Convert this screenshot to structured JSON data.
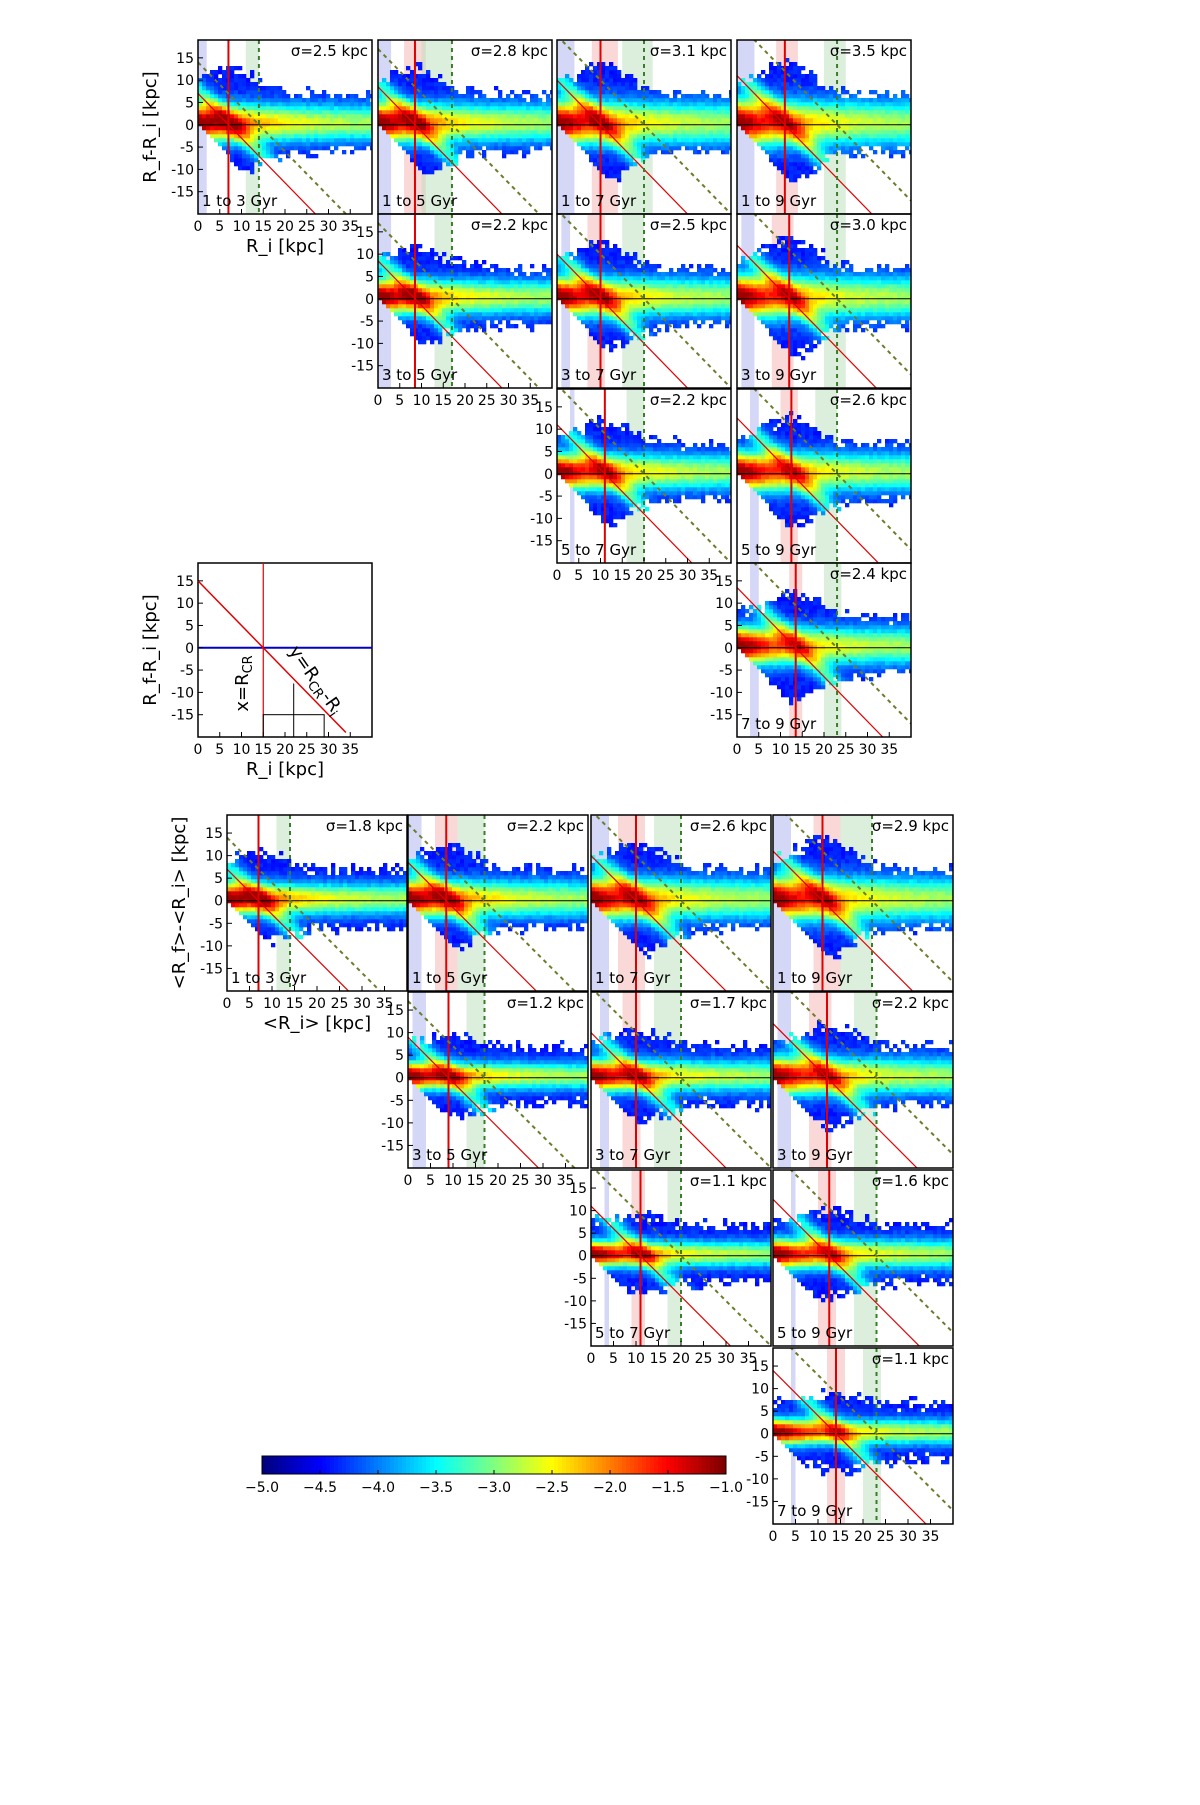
{
  "chart_data": [
    {
      "type": "heatmap",
      "group": "top",
      "xlabel": "R_i [kpc]",
      "ylabel": "R_f-R_i [kpc]",
      "xlim": [
        0,
        40
      ],
      "ylim": [
        -20,
        19
      ],
      "xticks": [
        0,
        5,
        10,
        15,
        20,
        25,
        30,
        35
      ],
      "yticks": [
        15,
        10,
        5,
        0,
        -5,
        -10,
        -15
      ],
      "panels": [
        {
          "row": 0,
          "col": 0,
          "label": "1 to 3 Gyr",
          "sigma": "σ=2.5 kpc",
          "r_cr": 7,
          "blue_band": [
            0,
            2
          ],
          "red_band": null,
          "green_band": [
            11,
            14
          ],
          "green_dashed": 14,
          "spread": 0.8
        },
        {
          "row": 0,
          "col": 1,
          "label": "1 to 5 Gyr",
          "sigma": "σ=2.8 kpc",
          "r_cr": 8.5,
          "blue_band": [
            0,
            3
          ],
          "red_band": [
            6,
            11
          ],
          "green_band": [
            10,
            17
          ],
          "green_dashed": 17,
          "spread": 0.85
        },
        {
          "row": 0,
          "col": 2,
          "label": "1 to 7 Gyr",
          "sigma": "σ=3.1 kpc",
          "r_cr": 10,
          "blue_band": [
            0,
            4
          ],
          "red_band": [
            8,
            14
          ],
          "green_band": [
            15,
            22
          ],
          "green_dashed": 20,
          "spread": 1.0
        },
        {
          "row": 0,
          "col": 3,
          "label": "1 to 9 Gyr",
          "sigma": "σ=3.5 kpc",
          "r_cr": 11,
          "blue_band": [
            0,
            4
          ],
          "red_band": [
            9,
            14
          ],
          "green_band": [
            20,
            25
          ],
          "green_dashed": 23,
          "spread": 1.1
        },
        {
          "row": 1,
          "col": 1,
          "label": "3 to 5 Gyr",
          "sigma": "σ=2.2 kpc",
          "r_cr": 8.5,
          "blue_band": [
            0,
            3
          ],
          "red_band": null,
          "green_band": [
            13,
            17
          ],
          "green_dashed": 17,
          "spread": 0.7
        },
        {
          "row": 1,
          "col": 2,
          "label": "3 to 7 Gyr",
          "sigma": "σ=2.5 kpc",
          "r_cr": 10,
          "blue_band": [
            1,
            3
          ],
          "red_band": [
            7,
            11
          ],
          "green_band": [
            15,
            20
          ],
          "green_dashed": 20,
          "spread": 0.85
        },
        {
          "row": 1,
          "col": 3,
          "label": "3 to 9 Gyr",
          "sigma": "σ=3.0 kpc",
          "r_cr": 12,
          "blue_band": [
            1,
            4
          ],
          "red_band": [
            8,
            13
          ],
          "green_band": [
            20,
            25
          ],
          "green_dashed": 23,
          "spread": 1.0
        },
        {
          "row": 2,
          "col": 2,
          "label": "5 to 7 Gyr",
          "sigma": "σ=2.2 kpc",
          "r_cr": 11,
          "blue_band": [
            3,
            4
          ],
          "red_band": null,
          "green_band": [
            16,
            20
          ],
          "green_dashed": 20,
          "spread": 0.75
        },
        {
          "row": 2,
          "col": 3,
          "label": "5 to 9 Gyr",
          "sigma": "σ=2.6 kpc",
          "r_cr": 12.5,
          "blue_band": [
            3,
            5
          ],
          "red_band": [
            10,
            14
          ],
          "green_band": [
            18,
            23
          ],
          "green_dashed": 23,
          "spread": 0.85
        },
        {
          "row": 3,
          "col": 3,
          "label": "7 to 9 Gyr",
          "sigma": "σ=2.4 kpc",
          "r_cr": 13.5,
          "blue_band": [
            3,
            5
          ],
          "red_band": [
            12,
            15
          ],
          "green_band": [
            20,
            24
          ],
          "green_dashed": 23,
          "spread": 0.8
        }
      ]
    },
    {
      "type": "diagram",
      "group": "key",
      "xlabel": "R_i [kpc]",
      "ylabel": "R_f-R_i [kpc]",
      "xlim": [
        0,
        40
      ],
      "ylim": [
        -20,
        19
      ],
      "xticks": [
        0,
        5,
        10,
        15,
        20,
        25,
        30,
        35
      ],
      "yticks": [
        15,
        10,
        5,
        0,
        -5,
        -10,
        -15
      ],
      "r_cr": 15,
      "vline_label": "x=R",
      "vline_sub": "CR",
      "diag_label_pre": "y=R",
      "diag_sub": "CR",
      "diag_label_post": "-R",
      "diag_sub2": "i"
    },
    {
      "type": "heatmap",
      "group": "bottom",
      "xlabel": "<R_i> [kpc]",
      "ylabel": "<R_f>-<R_i> [kpc]",
      "xlim": [
        0,
        40
      ],
      "ylim": [
        -20,
        19
      ],
      "xticks": [
        0,
        5,
        10,
        15,
        20,
        25,
        30,
        35
      ],
      "yticks": [
        15,
        10,
        5,
        0,
        -5,
        -10,
        -15
      ],
      "panels": [
        {
          "row": 0,
          "col": 0,
          "label": "1 to 3 Gyr",
          "sigma": "σ=1.8 kpc",
          "r_cr": 7,
          "blue_band": null,
          "red_band": null,
          "green_band": [
            11,
            14
          ],
          "green_dashed": 14,
          "spread": 0.55
        },
        {
          "row": 0,
          "col": 1,
          "label": "1 to 5 Gyr",
          "sigma": "σ=2.2 kpc",
          "r_cr": 8.5,
          "blue_band": [
            0,
            3
          ],
          "red_band": [
            6,
            11
          ],
          "green_band": [
            11,
            17
          ],
          "green_dashed": 17,
          "spread": 0.75
        },
        {
          "row": 0,
          "col": 2,
          "label": "1 to 7 Gyr",
          "sigma": "σ=2.6 kpc",
          "r_cr": 10,
          "blue_band": [
            0,
            4
          ],
          "red_band": [
            6,
            12
          ],
          "green_band": [
            14,
            20
          ],
          "green_dashed": 20,
          "spread": 0.9
        },
        {
          "row": 0,
          "col": 3,
          "label": "1 to 9 Gyr",
          "sigma": "σ=2.9 kpc",
          "r_cr": 11,
          "blue_band": [
            0,
            4
          ],
          "red_band": [
            9,
            15
          ],
          "green_band": [
            15,
            22
          ],
          "green_dashed": 22,
          "spread": 1.0
        },
        {
          "row": 1,
          "col": 1,
          "label": "3 to 5 Gyr",
          "sigma": "σ=1.2 kpc",
          "r_cr": 9,
          "blue_band": [
            1,
            4
          ],
          "red_band": null,
          "green_band": [
            13,
            17
          ],
          "green_dashed": 17,
          "spread": 0.4
        },
        {
          "row": 1,
          "col": 2,
          "label": "3 to 7 Gyr",
          "sigma": "σ=1.7 kpc",
          "r_cr": 10,
          "blue_band": [
            2,
            4
          ],
          "red_band": [
            7,
            11
          ],
          "green_band": [
            14,
            20
          ],
          "green_dashed": 20,
          "spread": 0.55
        },
        {
          "row": 1,
          "col": 3,
          "label": "3 to 9 Gyr",
          "sigma": "σ=2.2 kpc",
          "r_cr": 12,
          "blue_band": [
            1,
            4
          ],
          "red_band": [
            8,
            13
          ],
          "green_band": [
            18,
            23
          ],
          "green_dashed": 23,
          "spread": 0.75
        },
        {
          "row": 2,
          "col": 2,
          "label": "5 to 7 Gyr",
          "sigma": "σ=1.1 kpc",
          "r_cr": 11,
          "blue_band": [
            3,
            4
          ],
          "red_band": [
            9,
            12
          ],
          "green_band": [
            17,
            20
          ],
          "green_dashed": 20,
          "spread": 0.35
        },
        {
          "row": 2,
          "col": 3,
          "label": "5 to 9 Gyr",
          "sigma": "σ=1.6 kpc",
          "r_cr": 12.5,
          "blue_band": [
            4,
            5
          ],
          "red_band": [
            10,
            14
          ],
          "green_band": [
            18,
            23
          ],
          "green_dashed": 23,
          "spread": 0.5
        },
        {
          "row": 3,
          "col": 3,
          "label": "7 to 9 Gyr",
          "sigma": "σ=1.1 kpc",
          "r_cr": 14,
          "blue_band": [
            4,
            5
          ],
          "red_band": [
            12,
            16
          ],
          "green_band": [
            20,
            24
          ],
          "green_dashed": 23,
          "spread": 0.35
        }
      ]
    },
    {
      "type": "colorbar",
      "group": "colorbar",
      "range": [
        -5.0,
        -1.0
      ],
      "ticks": [
        "−5.0",
        "−4.5",
        "−4.0",
        "−3.5",
        "−3.0",
        "−2.5",
        "−2.0",
        "−1.5",
        "−1.0"
      ],
      "colormap": "jet"
    }
  ]
}
